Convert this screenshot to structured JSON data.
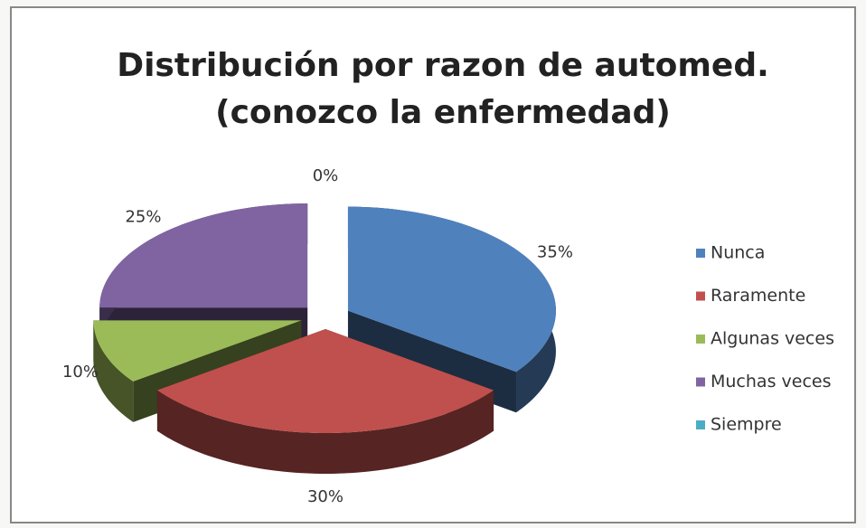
{
  "chart_data": {
    "type": "pie3d",
    "title": [
      "Distribución por razon de automed.",
      "(conozco la enfermedad)"
    ],
    "categories": [
      "Nunca",
      "Raramente",
      "Algunas veces",
      "Muchas veces",
      "Siempre"
    ],
    "values": [
      35,
      30,
      10,
      25,
      0
    ],
    "value_labels": [
      "35%",
      "30%",
      "10%",
      "25%",
      "0%"
    ],
    "colors": [
      "#4f81bd",
      "#c0504d",
      "#9bbb59",
      "#8064a2",
      "#4bacc6"
    ],
    "legend": "right"
  }
}
